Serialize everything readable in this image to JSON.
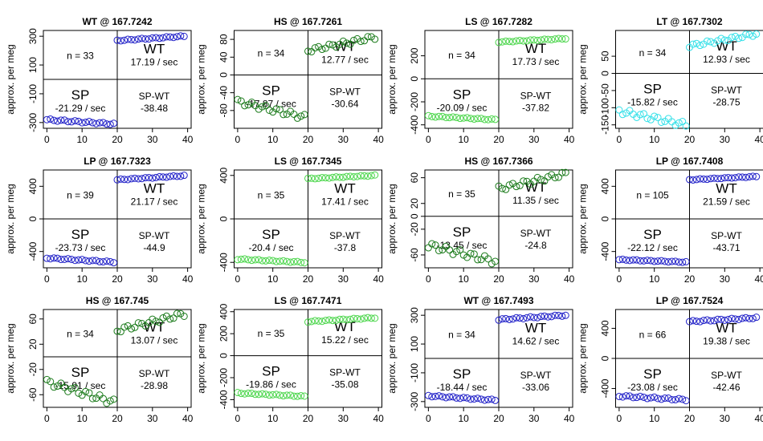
{
  "colors": {
    "WT": "#2020c8",
    "HS": "#1a7a1a",
    "LS": "#4cd64c",
    "LT": "#33e0e8",
    "LP": "#2020c8"
  },
  "shared": {
    "ylabel": "approx. per meg",
    "x_ticks": [
      0,
      10,
      20,
      30,
      40
    ],
    "xlim": [
      -1,
      41
    ],
    "split_x": 20,
    "sp_label": "SP",
    "wt_label": "WT",
    "diff_label": "SP-WT"
  },
  "chart_data": [
    {
      "type": "scatter",
      "title": "WT @ 167.7242",
      "group": "WT",
      "n_text": "n = 33",
      "wt_text": "17.19 / sec",
      "sp_text": "-21.29 / sec",
      "diff_text": "-38.48",
      "ylim": [
        -340,
        340
      ],
      "y_ticks": [
        300,
        100,
        -100,
        -300
      ],
      "sp_y": [
        -280,
        -310
      ],
      "wt_y": [
        270,
        300
      ],
      "sp_jit": 6,
      "wt_jit": 4
    },
    {
      "type": "scatter",
      "title": "HS @ 167.7261",
      "group": "HS",
      "n_text": "n = 34",
      "wt_text": "12.77 / sec",
      "sp_text": "-17.87 / sec",
      "diff_text": "-30.64",
      "ylim": [
        -120,
        100
      ],
      "y_ticks": [
        80,
        40,
        0,
        -40,
        -80
      ],
      "sp_y": [
        -60,
        -95
      ],
      "wt_y": [
        55,
        85
      ],
      "sp_jit": 6,
      "wt_jit": 5
    },
    {
      "type": "scatter",
      "title": "LS @ 167.7282",
      "group": "LS",
      "n_text": "n = 34",
      "wt_text": "17.73 / sec",
      "sp_text": "-20.09 / sec",
      "diff_text": "-37.82",
      "ylim": [
        -430,
        420
      ],
      "y_ticks": [
        200,
        0,
        -200,
        -400
      ],
      "sp_y": [
        -325,
        -355
      ],
      "wt_y": [
        320,
        350
      ],
      "sp_jit": 5,
      "wt_jit": 4
    },
    {
      "type": "scatter",
      "title": "LT @ 167.7302",
      "group": "LT",
      "n_text": "n = 34",
      "wt_text": "12.93 / sec",
      "sp_text": "-15.82 / sec",
      "diff_text": "-28.75",
      "ylim": [
        -160,
        125
      ],
      "y_ticks": [
        50,
        0,
        -50,
        -100,
        -150
      ],
      "sp_y": [
        -110,
        -150
      ],
      "wt_y": [
        80,
        115
      ],
      "sp_jit": 8,
      "wt_jit": 5
    },
    {
      "type": "scatter",
      "title": "LP @ 167.7323",
      "group": "LP",
      "n_text": "n = 39",
      "wt_text": "21.17 / sec",
      "sp_text": "-23.73 / sec",
      "diff_text": "-44.9",
      "ylim": [
        -600,
        600
      ],
      "y_ticks": [
        400,
        0,
        -400
      ],
      "sp_y": [
        -480,
        -530
      ],
      "wt_y": [
        480,
        530
      ],
      "sp_jit": 8,
      "wt_jit": 6
    },
    {
      "type": "scatter",
      "title": "LS @ 167.7345",
      "group": "LS",
      "n_text": "n = 35",
      "wt_text": "17.41 / sec",
      "sp_text": "-20.4 / sec",
      "diff_text": "-37.8",
      "ylim": [
        -450,
        450
      ],
      "y_ticks": [
        400,
        0,
        -400
      ],
      "sp_y": [
        -370,
        -400
      ],
      "wt_y": [
        370,
        400
      ],
      "sp_jit": 5,
      "wt_jit": 4
    },
    {
      "type": "scatter",
      "title": "HS @ 167.7366",
      "group": "HS",
      "n_text": "n = 35",
      "wt_text": "11.35 / sec",
      "sp_text": "-13.45 / sec",
      "diff_text": "-24.8",
      "ylim": [
        -80,
        72
      ],
      "y_ticks": [
        60,
        20,
        0,
        -20,
        -60
      ],
      "sp_y": [
        -45,
        -70
      ],
      "wt_y": [
        43,
        66
      ],
      "sp_jit": 5,
      "wt_jit": 4
    },
    {
      "type": "scatter",
      "title": "LP @ 167.7408",
      "group": "LP",
      "n_text": "n = 105",
      "wt_text": "21.59 / sec",
      "sp_text": "-22.12 / sec",
      "diff_text": "-43.71",
      "ylim": [
        -600,
        600
      ],
      "y_ticks": [
        400,
        0,
        -400
      ],
      "sp_y": [
        -500,
        -530
      ],
      "wt_y": [
        480,
        520
      ],
      "sp_jit": 6,
      "wt_jit": 5
    },
    {
      "type": "scatter",
      "title": "HS @ 167.745",
      "group": "HS",
      "n_text": "n = 34",
      "wt_text": "13.07 / sec",
      "sp_text": "-15.91 / sec",
      "diff_text": "-28.98",
      "ylim": [
        -80,
        75
      ],
      "y_ticks": [
        60,
        20,
        -20,
        -60
      ],
      "sp_y": [
        -40,
        -72
      ],
      "wt_y": [
        42,
        68
      ],
      "sp_jit": 5,
      "wt_jit": 4
    },
    {
      "type": "scatter",
      "title": "LS @ 167.7471",
      "group": "LS",
      "n_text": "n = 35",
      "wt_text": "15.22 / sec",
      "sp_text": "-19.86 / sec",
      "diff_text": "-35.08",
      "ylim": [
        -470,
        420
      ],
      "y_ticks": [
        400,
        200,
        0,
        -200,
        -400
      ],
      "sp_y": [
        -340,
        -370
      ],
      "wt_y": [
        310,
        345
      ],
      "sp_jit": 5,
      "wt_jit": 5
    },
    {
      "type": "scatter",
      "title": "WT @ 167.7493",
      "group": "WT",
      "n_text": "n = 34",
      "wt_text": "14.62 / sec",
      "sp_text": "-18.44 / sec",
      "diff_text": "-33.06",
      "ylim": [
        -340,
        340
      ],
      "y_ticks": [
        300,
        100,
        -100,
        -300
      ],
      "sp_y": [
        -260,
        -290
      ],
      "wt_y": [
        270,
        300
      ],
      "sp_jit": 5,
      "wt_jit": 5
    },
    {
      "type": "scatter",
      "title": "LP @ 167.7524",
      "group": "LP",
      "n_text": "n = 66",
      "wt_text": "19.38 / sec",
      "sp_text": "-23.08 / sec",
      "diff_text": "-42.46",
      "ylim": [
        -650,
        650
      ],
      "y_ticks": [
        400,
        0,
        -400
      ],
      "sp_y": [
        -500,
        -550
      ],
      "wt_y": [
        490,
        540
      ],
      "sp_jit": 12,
      "wt_jit": 10
    }
  ]
}
